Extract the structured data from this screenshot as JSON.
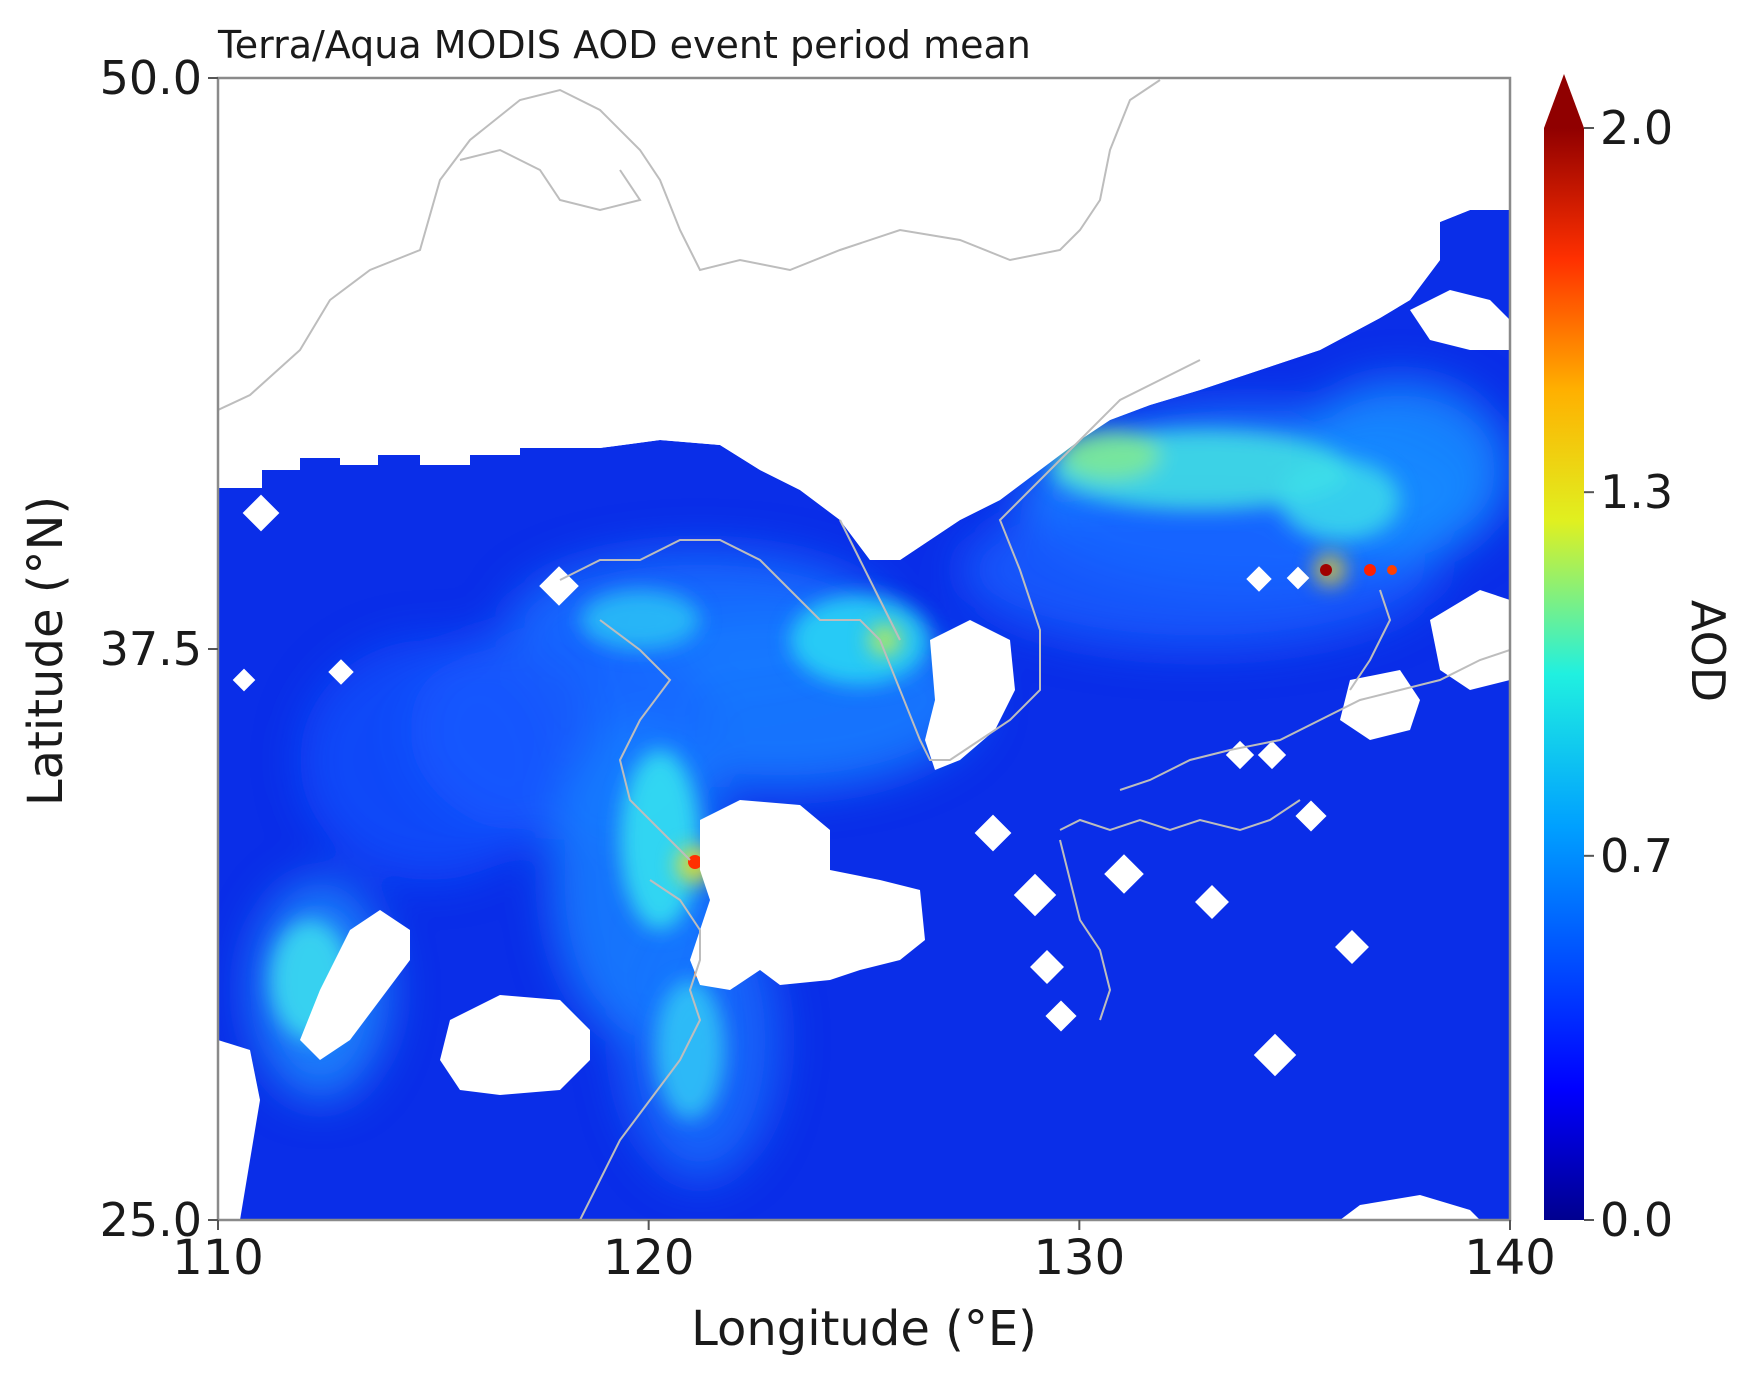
{
  "chart_data": {
    "type": "heatmap",
    "title": "Terra/Aqua MODIS AOD event period mean",
    "xlabel": "Longitude (°E)",
    "ylabel": "Latitude (°N)",
    "xlim": [
      110,
      140
    ],
    "ylim": [
      25.0,
      50.0
    ],
    "xticks": [
      "110",
      "120",
      "130",
      "140"
    ],
    "xtick_values": [
      110,
      120,
      130,
      140
    ],
    "yticks": [
      "25.0",
      "37.5",
      "50.0"
    ],
    "ytick_values": [
      25.0,
      37.5,
      50.0
    ],
    "colorbar": {
      "label": "AOD",
      "min": 0.0,
      "max": 2.0,
      "extend": "max",
      "ticks": [
        "0.0",
        "0.7",
        "1.3",
        "2.0"
      ],
      "tick_values": [
        0.0,
        0.667,
        1.333,
        2.0
      ],
      "colormap": "jet"
    },
    "hotspots": [
      {
        "lon": 121.2,
        "lat": 32.0,
        "aod": 1.8
      },
      {
        "lon": 121.3,
        "lat": 29.1,
        "aod": 1.5
      },
      {
        "lon": 135.2,
        "lat": 40.5,
        "aod": 2.0
      },
      {
        "lon": 136.4,
        "lat": 40.5,
        "aod": 1.8
      },
      {
        "lon": 125.5,
        "lat": 38.1,
        "aod": 1.1
      },
      {
        "lon": 132.5,
        "lat": 42.1,
        "aod": 1.0
      }
    ],
    "grid": false
  }
}
